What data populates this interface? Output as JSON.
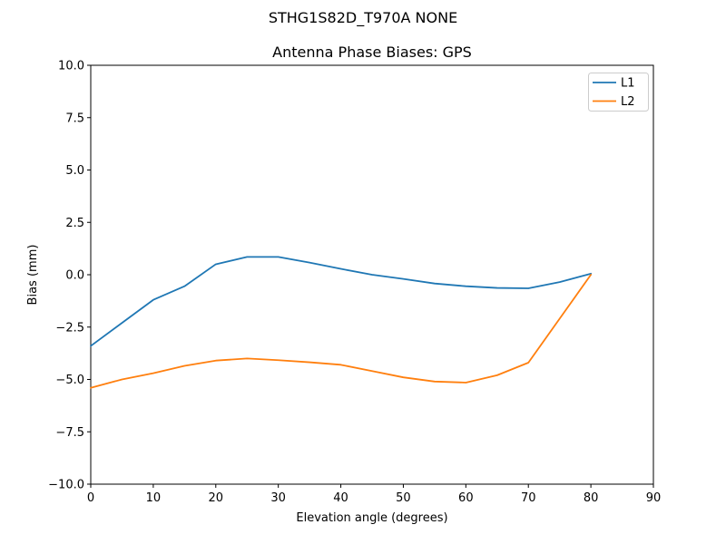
{
  "figure": {
    "suptitle": "STHG1S82D_T970A NONE",
    "background": "#ffffff"
  },
  "chart_data": {
    "type": "line",
    "title": "Antenna Phase Biases: GPS",
    "xlabel": "Elevation angle (degrees)",
    "ylabel": "Bias (mm)",
    "xlim": [
      0,
      90
    ],
    "ylim": [
      -10,
      10
    ],
    "grid": false,
    "legend_position": "upper right",
    "x": [
      0,
      5,
      10,
      15,
      20,
      25,
      30,
      35,
      40,
      45,
      50,
      55,
      60,
      65,
      70,
      75,
      80
    ],
    "series": [
      {
        "name": "L1",
        "color": "#1f77b4",
        "values": [
          -3.4,
          -2.3,
          -1.2,
          -0.55,
          0.5,
          0.85,
          0.85,
          0.58,
          0.28,
          0.0,
          -0.2,
          -0.42,
          -0.55,
          -0.63,
          -0.65,
          -0.35,
          0.05
        ]
      },
      {
        "name": "L2",
        "color": "#ff7f0e",
        "values": [
          -5.4,
          -5.0,
          -4.7,
          -4.35,
          -4.1,
          -4.0,
          -4.08,
          -4.18,
          -4.3,
          -4.6,
          -4.9,
          -5.1,
          -5.15,
          -4.8,
          -4.2,
          -2.1,
          0.0
        ]
      }
    ],
    "xticks": {
      "values": [
        0,
        10,
        20,
        30,
        40,
        50,
        60,
        70,
        80,
        90
      ],
      "labels": [
        "0",
        "10",
        "20",
        "30",
        "40",
        "50",
        "60",
        "70",
        "80",
        "90"
      ]
    },
    "yticks": {
      "values": [
        -10,
        -7.5,
        -5,
        -2.5,
        0,
        2.5,
        5,
        7.5,
        10
      ],
      "labels": [
        "−10.0",
        "−7.5",
        "−5.0",
        "−2.5",
        "0.0",
        "2.5",
        "5.0",
        "7.5",
        "10.0"
      ]
    }
  }
}
